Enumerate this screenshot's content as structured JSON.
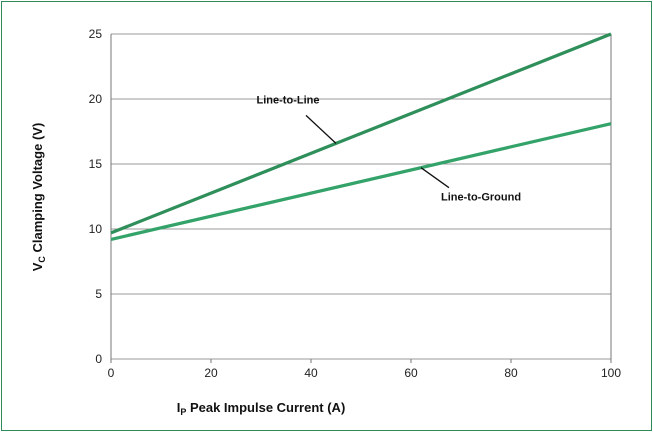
{
  "chart_data": {
    "type": "line",
    "xlim": [
      0,
      100
    ],
    "ylim": [
      0,
      25
    ],
    "x_ticks": [
      "0",
      "20",
      "40",
      "60",
      "80",
      "100"
    ],
    "y_ticks": [
      "0",
      "5",
      "10",
      "15",
      "20",
      "25"
    ],
    "xlabel": {
      "main": "I",
      "sub": "P",
      "rest": " Peak Impulse Current (A)"
    },
    "ylabel": {
      "main": "V",
      "sub": "C",
      "rest": " Clamping Voltage (V)"
    },
    "grid": "horizontal",
    "series": [
      {
        "name": "Line-to-Line",
        "x": [
          0,
          100
        ],
        "y": [
          9.7,
          25.0
        ],
        "color": "#2f8f5b",
        "label_at": 45
      },
      {
        "name": "Line-to-Ground",
        "x": [
          0,
          100
        ],
        "y": [
          9.2,
          18.1
        ],
        "color": "#34a36a",
        "label_at": 62
      }
    ],
    "annotations": [
      {
        "text": "Line-to-Line",
        "series": 0
      },
      {
        "text": "Line-to-Ground",
        "series": 1
      }
    ]
  }
}
